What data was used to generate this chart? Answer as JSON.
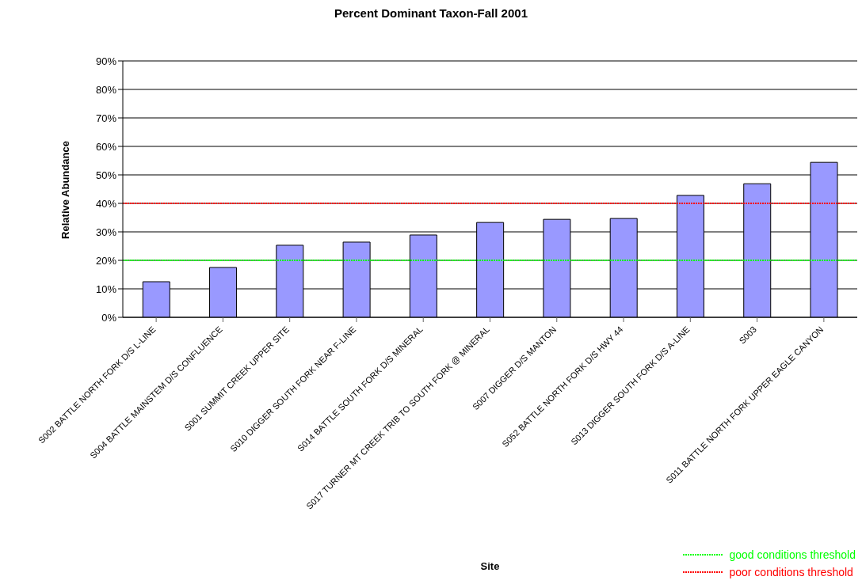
{
  "chart_data": {
    "type": "bar",
    "title": "Percent Dominant Taxon-Fall 2001",
    "xlabel": "Site",
    "ylabel": "Relative Abundance",
    "categories": [
      "S002 BATTLE NORTH FORK D/S L-LINE",
      "S004 BATTLE MAINSTEM D/S CONFLUENCE",
      "S001 SUMMIT CREEK UPPER SITE",
      "S010 DIGGER SOUTH FORK NEAR F-LINE",
      "S014 BATTLE SOUTH FORK D/S MINERAL",
      "S017 TURNER MT CREEK TRIB TO SOUTH FORK @ MINERAL",
      "S007 DIGGER D/S MANTON",
      "S052 BATTLE NORTH FORK D/S HWY 44",
      "S013 DIGGER SOUTH FORK D/S A-LINE",
      "S003",
      "S011 BATTLE NORTH FORK UPPER EAGLE CANYON"
    ],
    "values": [
      12.5,
      17.5,
      25.3,
      26.4,
      28.9,
      33.3,
      34.4,
      34.7,
      42.8,
      46.9,
      54.4
    ],
    "color": "#9999ff",
    "ylim": [
      0,
      90
    ],
    "yticks": [
      {
        "value": 0,
        "label": "0%"
      },
      {
        "value": 10,
        "label": "10%"
      },
      {
        "value": 20,
        "label": "20%"
      },
      {
        "value": 30,
        "label": "30%"
      },
      {
        "value": 40,
        "label": "40%"
      },
      {
        "value": 50,
        "label": "50%"
      },
      {
        "value": 60,
        "label": "60%"
      },
      {
        "value": 70,
        "label": "70%"
      },
      {
        "value": 80,
        "label": "80%"
      },
      {
        "value": 90,
        "label": "90%"
      }
    ],
    "grid": "y",
    "legend": "bottom right",
    "ref_lines": [
      {
        "axis": "y",
        "value": 20,
        "label": "good conditions threshold",
        "color": "#00ff00",
        "line_style": "dotted"
      },
      {
        "axis": "y",
        "value": 40,
        "label": "poor conditions threshold",
        "color": "#ff0000",
        "line_style": "dotted"
      }
    ]
  }
}
